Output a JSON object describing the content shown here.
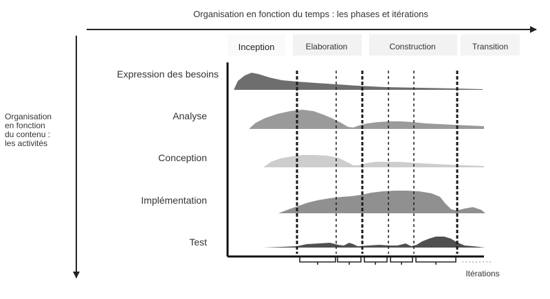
{
  "time_axis": {
    "label": "Organisation en fonction du temps : les phases et itérations"
  },
  "content_axis": {
    "label_lines": [
      "Organisation",
      "en fonction",
      "du contenu :",
      "les activités"
    ]
  },
  "phases": [
    {
      "name": "Inception"
    },
    {
      "name": "Elaboration"
    },
    {
      "name": "Construction"
    },
    {
      "name": "Transition"
    }
  ],
  "activities": [
    {
      "name": "Expression des besoins",
      "shade": "#6e6e6e"
    },
    {
      "name": "Analyse",
      "shade": "#9a9a9a"
    },
    {
      "name": "Conception",
      "shade": "#cdcdcd"
    },
    {
      "name": "Implémentation",
      "shade": "#909090"
    },
    {
      "name": "Test",
      "shade": "#505050"
    }
  ],
  "iterations_label": "Itérations"
}
